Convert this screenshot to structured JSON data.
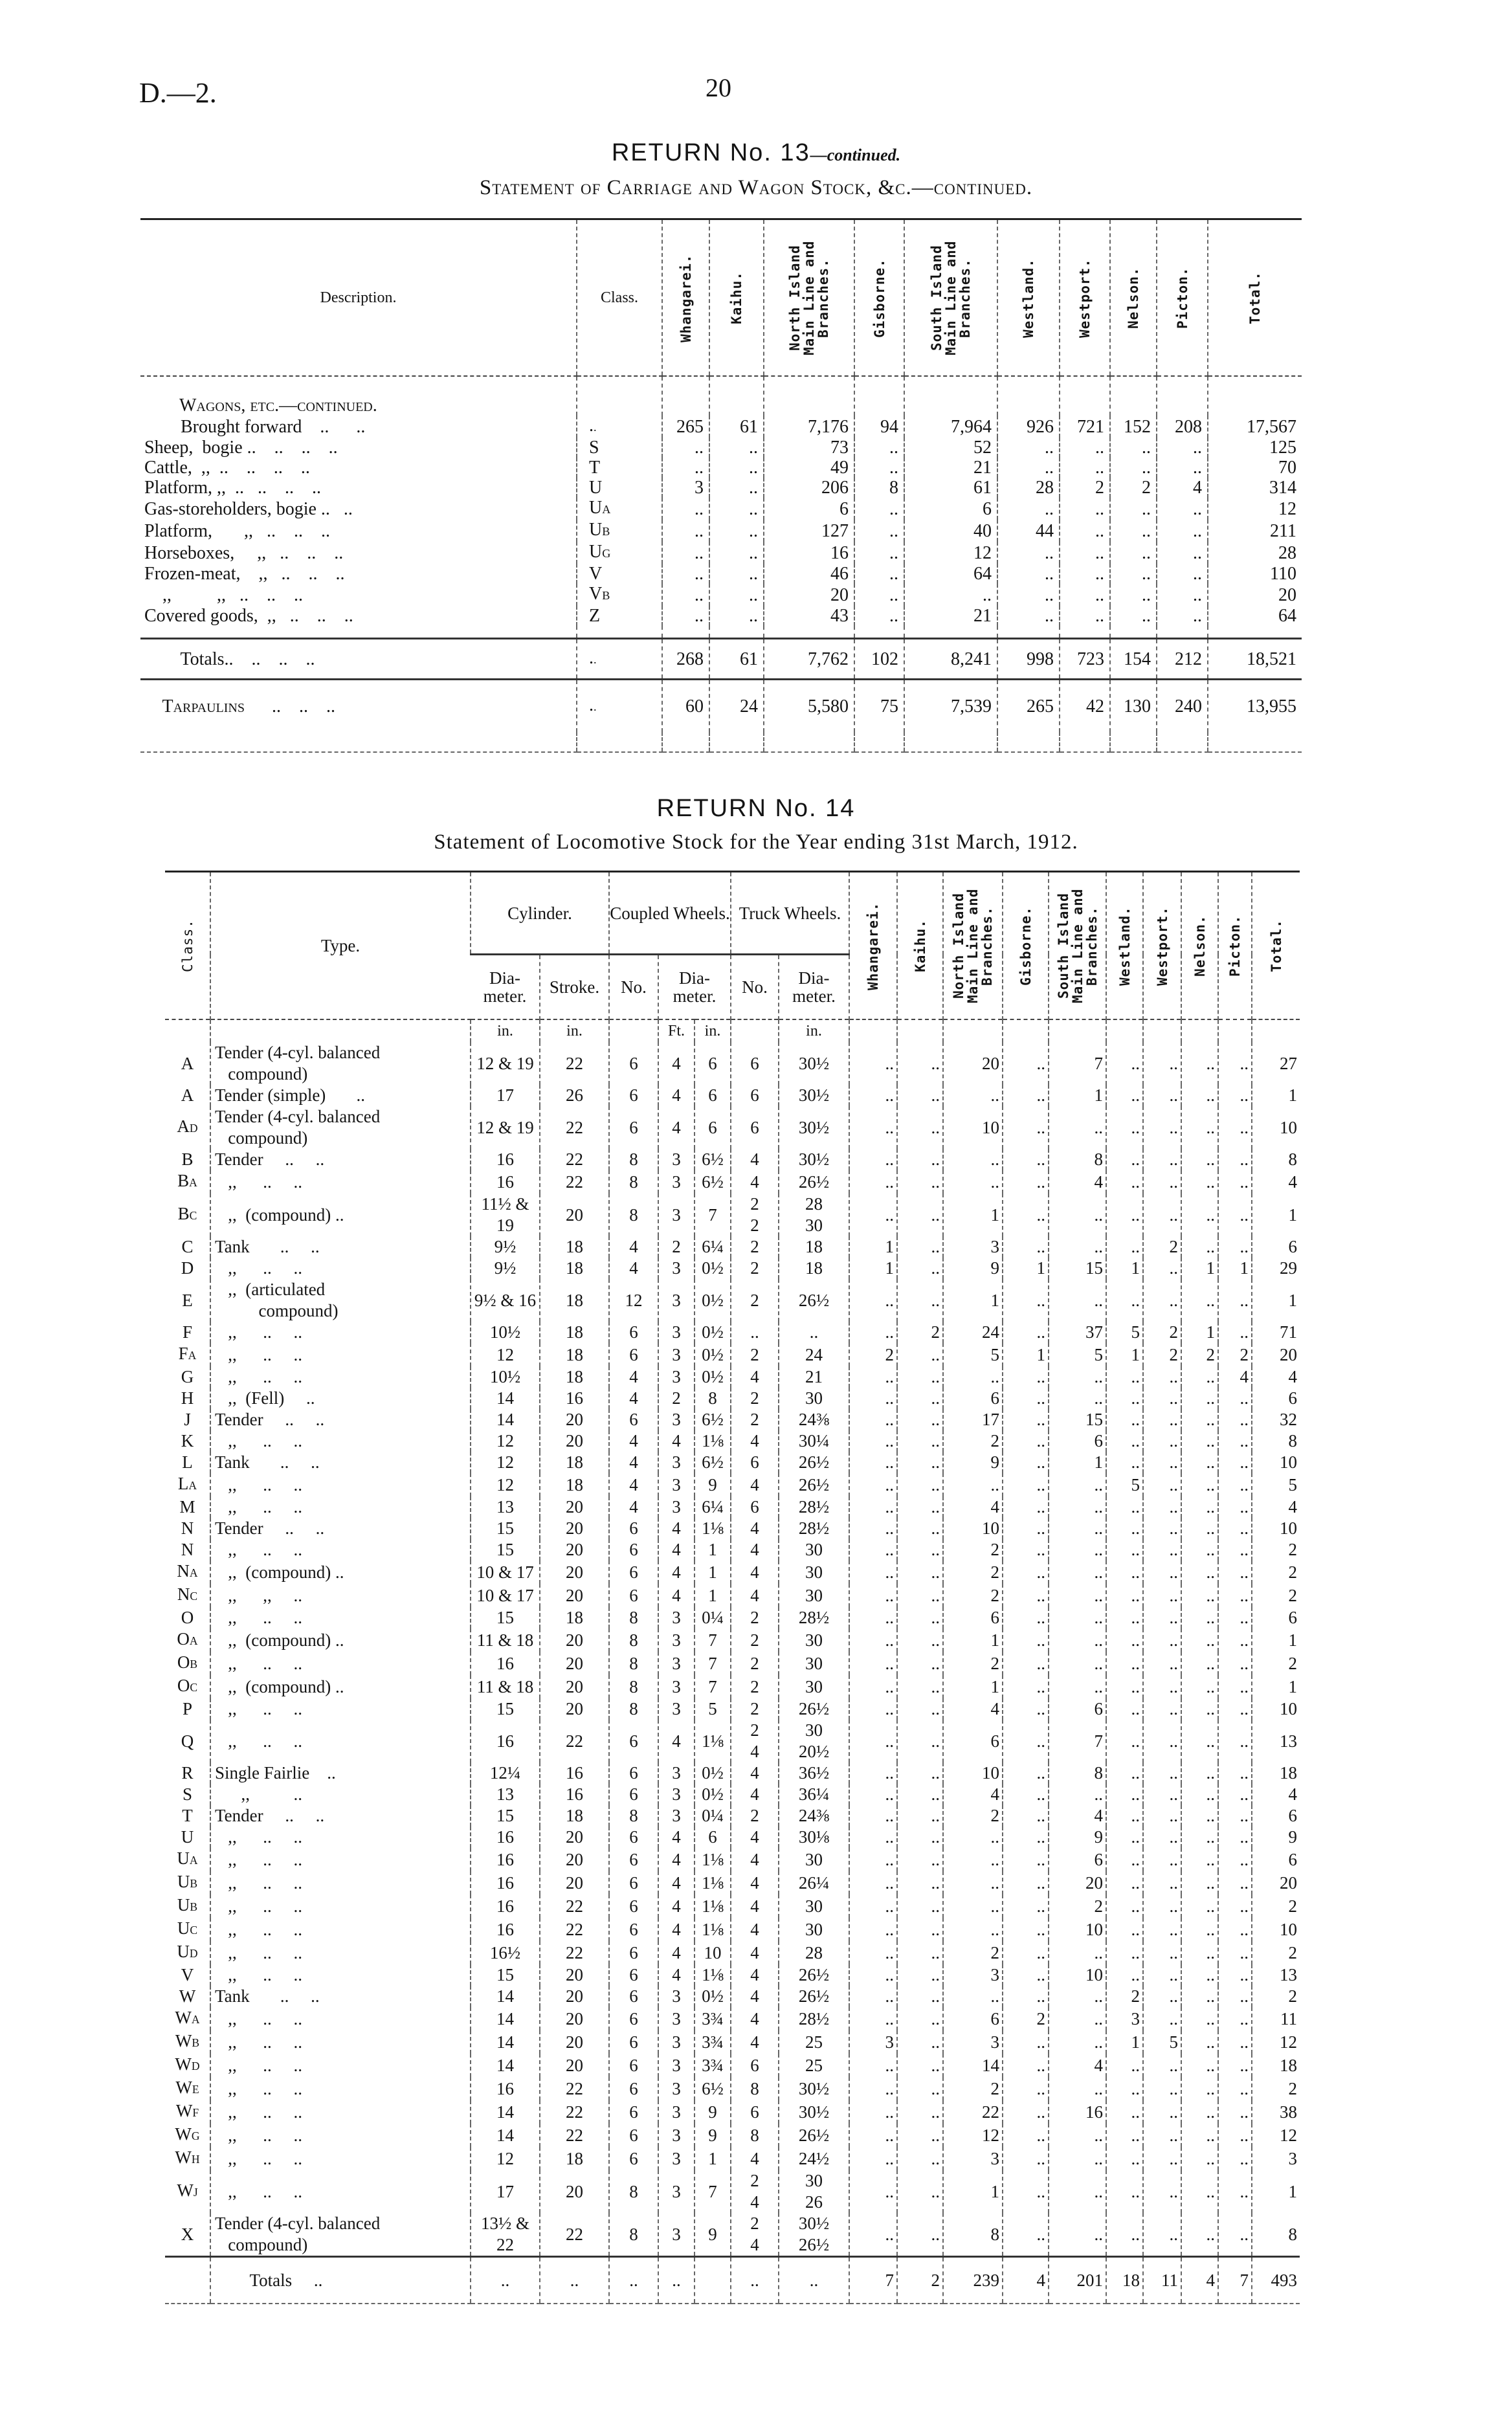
{
  "header": {
    "doc_code": "D.—2.",
    "page_number": "20"
  },
  "return13": {
    "title": "RETURN No. 13",
    "title_suffix": "—continued.",
    "subtitle": "Statement of Carriage and Wagon Stock, &c.—continued.",
    "columns": [
      "Description.",
      "Class.",
      "Whangarei.",
      "Kaihu.",
      "North Island Main Line and Branches.",
      "Gisborne.",
      "South Island Main Line and Branches.",
      "Westland.",
      "Westport.",
      "Nelson.",
      "Picton.",
      "Total."
    ],
    "section_label": "Wagons, etc.—continued.",
    "rows": [
      [
        "        Brought forward    ..      ..",
        "..",
        "265",
        "61",
        "7,176",
        "94",
        "7,964",
        "926",
        "721",
        "152",
        "208",
        "17,567"
      ],
      [
        "Sheep,  bogie ..    ..    ..    ..",
        "S",
        "..",
        "..",
        "73",
        "..",
        "52",
        "..",
        "..",
        "..",
        "..",
        "125"
      ],
      [
        "Cattle,  ,,  ..    ..    ..    ..",
        "T",
        "..",
        "..",
        "49",
        "..",
        "21",
        "..",
        "..",
        "..",
        "..",
        "70"
      ],
      [
        "Platform, ,,  ..   ..    ..    ..",
        "U",
        "3",
        "..",
        "206",
        "8",
        "61",
        "28",
        "2",
        "2",
        "4",
        "314"
      ],
      [
        "Gas-storeholders, bogie ..   ..",
        "UA",
        "..",
        "..",
        "6",
        "..",
        "6",
        "..",
        "..",
        "..",
        "..",
        "12"
      ],
      [
        "Platform,       ,,   ..    ..    ..",
        "UB",
        "..",
        "..",
        "127",
        "..",
        "40",
        "44",
        "..",
        "..",
        "..",
        "211"
      ],
      [
        "Horseboxes,     ,,   ..    ..    ..",
        "UG",
        "..",
        "..",
        "16",
        "..",
        "12",
        "..",
        "..",
        "..",
        "..",
        "28"
      ],
      [
        "Frozen-meat,    ,,   ..    ..    ..",
        "V",
        "..",
        "..",
        "46",
        "..",
        "64",
        "..",
        "..",
        "..",
        "..",
        "110"
      ],
      [
        "    ,,          ,,   ..    ..    ..",
        "VB",
        "..",
        "..",
        "20",
        "..",
        "..",
        "..",
        "..",
        "..",
        "..",
        "20"
      ],
      [
        "Covered goods,  ,,   ..    ..    ..",
        "Z",
        "..",
        "..",
        "43",
        "..",
        "21",
        "..",
        "..",
        "..",
        "..",
        "64"
      ]
    ],
    "totals": [
      "        Totals..    ..    ..    ..",
      "..",
      "268",
      "61",
      "7,762",
      "102",
      "8,241",
      "998",
      "723",
      "154",
      "212",
      "18,521"
    ],
    "tarpaulins": [
      "    Tarpaulins      ..    ..    ..",
      "..",
      "60",
      "24",
      "5,580",
      "75",
      "7,539",
      "265",
      "42",
      "130",
      "240",
      "13,955"
    ]
  },
  "return14": {
    "title": "RETURN No. 14",
    "subtitle": "Statement of Locomotive Stock for the Year ending 31st March, 1912.",
    "headers": {
      "class": "Class.",
      "type": "Type.",
      "cylinder": "Cylinder.",
      "coupled": "Coupled Wheels.",
      "truck": "Truck Wheels.",
      "diameter": "Dia-meter.",
      "stroke": "Stroke.",
      "no": "No.",
      "districts": [
        "Whangarei.",
        "Kaihu.",
        "North Island Main Line and Branches.",
        "Gisborne.",
        "South Island Main Line and Branches.",
        "Westland.",
        "Westport.",
        "Nelson.",
        "Picton.",
        "Total."
      ],
      "units": [
        "in.",
        "in.",
        "",
        "Ft.",
        "in.",
        "",
        "in."
      ]
    },
    "rows": [
      [
        "A",
        "Tender (4-cyl. balanced\n   compound)",
        "12 & 19",
        "22",
        "6",
        "4",
        "6",
        "6",
        "30½",
        "..",
        "..",
        "20",
        "..",
        "7",
        "..",
        "..",
        "..",
        "..",
        "27"
      ],
      [
        "A",
        "Tender (simple)       ..",
        "17",
        "26",
        "6",
        "4",
        "6",
        "6",
        "30½",
        "..",
        "..",
        "..",
        "..",
        "1",
        "..",
        "..",
        "..",
        "..",
        "1"
      ],
      [
        "AD",
        "Tender (4-cyl. balanced\n   compound)",
        "12 & 19",
        "22",
        "6",
        "4",
        "6",
        "6",
        "30½",
        "..",
        "..",
        "10",
        "..",
        "..",
        "..",
        "..",
        "..",
        "..",
        "10"
      ],
      [
        "B",
        "Tender     ..     ..",
        "16",
        "22",
        "8",
        "3",
        "6½",
        "4",
        "30½",
        "..",
        "..",
        "..",
        "..",
        "8",
        "..",
        "..",
        "..",
        "..",
        "8"
      ],
      [
        "BA",
        "   ,,      ..     ..",
        "16",
        "22",
        "8",
        "3",
        "6½",
        "4",
        "26½",
        "..",
        "..",
        "..",
        "..",
        "4",
        "..",
        "..",
        "..",
        "..",
        "4"
      ],
      [
        "BC",
        "   ,,  (compound) ..",
        "11½ &\n19",
        "20",
        "8",
        "3",
        "7",
        "2\n2",
        "28\n30",
        "..",
        "..",
        "1",
        "..",
        "..",
        "..",
        "..",
        "..",
        "..",
        "1"
      ],
      [
        "C",
        "Tank       ..     ..",
        "9½",
        "18",
        "4",
        "2",
        "6¼",
        "2",
        "18",
        "1",
        "..",
        "3",
        "..",
        "..",
        "..",
        "2",
        "..",
        "..",
        "6"
      ],
      [
        "D",
        "   ,,      ..     ..",
        "9½",
        "18",
        "4",
        "3",
        "0½",
        "2",
        "18",
        "1",
        "..",
        "9",
        "1",
        "15",
        "1",
        "..",
        "1",
        "1",
        "29"
      ],
      [
        "E",
        "   ,,  (articulated\n          compound)",
        "9½ & 16",
        "18",
        "12",
        "3",
        "0½",
        "2",
        "26½",
        "..",
        "..",
        "1",
        "..",
        "..",
        "..",
        "..",
        "..",
        "..",
        "1"
      ],
      [
        "F",
        "   ,,      ..     ..",
        "10½",
        "18",
        "6",
        "3",
        "0½",
        "..",
        "..",
        "..",
        "2",
        "24",
        "..",
        "37",
        "5",
        "2",
        "1",
        "..",
        "71"
      ],
      [
        "FA",
        "   ,,      ..     ..",
        "12",
        "18",
        "6",
        "3",
        "0½",
        "2",
        "24",
        "2",
        "..",
        "5",
        "1",
        "5",
        "1",
        "2",
        "2",
        "2",
        "20"
      ],
      [
        "G",
        "   ,,      ..     ..",
        "10½",
        "18",
        "4",
        "3",
        "0½",
        "4",
        "21",
        "..",
        "..",
        "..",
        "..",
        "..",
        "..",
        "..",
        "..",
        "4",
        "4"
      ],
      [
        "H",
        "   ,,  (Fell)     ..",
        "14",
        "16",
        "4",
        "2",
        "8",
        "2",
        "30",
        "..",
        "..",
        "6",
        "..",
        "..",
        "..",
        "..",
        "..",
        "..",
        "6"
      ],
      [
        "J",
        "Tender     ..     ..",
        "14",
        "20",
        "6",
        "3",
        "6½",
        "2",
        "24⅜",
        "..",
        "..",
        "17",
        "..",
        "15",
        "..",
        "..",
        "..",
        "..",
        "32"
      ],
      [
        "K",
        "   ,,      ..     ..",
        "12",
        "20",
        "4",
        "4",
        "1⅛",
        "4",
        "30¼",
        "..",
        "..",
        "2",
        "..",
        "6",
        "..",
        "..",
        "..",
        "..",
        "8"
      ],
      [
        "L",
        "Tank       ..     ..",
        "12",
        "18",
        "4",
        "3",
        "6½",
        "6",
        "26½",
        "..",
        "..",
        "9",
        "..",
        "1",
        "..",
        "..",
        "..",
        "..",
        "10"
      ],
      [
        "LA",
        "   ,,      ..     ..",
        "12",
        "18",
        "4",
        "3",
        "9",
        "4",
        "26½",
        "..",
        "..",
        "..",
        "..",
        "..",
        "5",
        "..",
        "..",
        "..",
        "5"
      ],
      [
        "M",
        "   ,,      ..     ..",
        "13",
        "20",
        "4",
        "3",
        "6¼",
        "6",
        "28½",
        "..",
        "..",
        "4",
        "..",
        "..",
        "..",
        "..",
        "..",
        "..",
        "4"
      ],
      [
        "N",
        "Tender     ..     ..",
        "15",
        "20",
        "6",
        "4",
        "1⅛",
        "4",
        "28½",
        "..",
        "..",
        "10",
        "..",
        "..",
        "..",
        "..",
        "..",
        "..",
        "10"
      ],
      [
        "N",
        "   ,,      ..     ..",
        "15",
        "20",
        "6",
        "4",
        "1",
        "4",
        "30",
        "..",
        "..",
        "2",
        "..",
        "..",
        "..",
        "..",
        "..",
        "..",
        "2"
      ],
      [
        "NA",
        "   ,,  (compound) ..",
        "10 & 17",
        "20",
        "6",
        "4",
        "1",
        "4",
        "30",
        "..",
        "..",
        "2",
        "..",
        "..",
        "..",
        "..",
        "..",
        "..",
        "2"
      ],
      [
        "NC",
        "   ,,      ,,     ..",
        "10 & 17",
        "20",
        "6",
        "4",
        "1",
        "4",
        "30",
        "..",
        "..",
        "2",
        "..",
        "..",
        "..",
        "..",
        "..",
        "..",
        "2"
      ],
      [
        "O",
        "   ,,      ..     ..",
        "15",
        "18",
        "8",
        "3",
        "0¼",
        "2",
        "28½",
        "..",
        "..",
        "6",
        "..",
        "..",
        "..",
        "..",
        "..",
        "..",
        "6"
      ],
      [
        "OA",
        "   ,,  (compound) ..",
        "11 & 18",
        "20",
        "8",
        "3",
        "7",
        "2",
        "30",
        "..",
        "..",
        "1",
        "..",
        "..",
        "..",
        "..",
        "..",
        "..",
        "1"
      ],
      [
        "OB",
        "   ,,      ..     ..",
        "16",
        "20",
        "8",
        "3",
        "7",
        "2",
        "30",
        "..",
        "..",
        "2",
        "..",
        "..",
        "..",
        "..",
        "..",
        "..",
        "2"
      ],
      [
        "OC",
        "   ,,  (compound) ..",
        "11 & 18",
        "20",
        "8",
        "3",
        "7",
        "2",
        "30",
        "..",
        "..",
        "1",
        "..",
        "..",
        "..",
        "..",
        "..",
        "..",
        "1"
      ],
      [
        "P",
        "   ,,      ..     ..",
        "15",
        "20",
        "8",
        "3",
        "5",
        "2",
        "26½",
        "..",
        "..",
        "4",
        "..",
        "6",
        "..",
        "..",
        "..",
        "..",
        "10"
      ],
      [
        "Q",
        "   ,,      ..     ..",
        "16",
        "22",
        "6",
        "4",
        "1⅛",
        "2\n4",
        "30\n20½",
        "..",
        "..",
        "6",
        "..",
        "7",
        "..",
        "..",
        "..",
        "..",
        "13"
      ],
      [
        "R",
        "Single Fairlie    ..",
        "12¼",
        "16",
        "6",
        "3",
        "0½",
        "4",
        "36½",
        "..",
        "..",
        "10",
        "..",
        "8",
        "..",
        "..",
        "..",
        "..",
        "18"
      ],
      [
        "S",
        "      ,,          ..",
        "13",
        "16",
        "6",
        "3",
        "0½",
        "4",
        "36¼",
        "..",
        "..",
        "4",
        "..",
        "..",
        "..",
        "..",
        "..",
        "..",
        "4"
      ],
      [
        "T",
        "Tender     ..     ..",
        "15",
        "18",
        "8",
        "3",
        "0¼",
        "2",
        "24⅜",
        "..",
        "..",
        "2",
        "..",
        "4",
        "..",
        "..",
        "..",
        "..",
        "6"
      ],
      [
        "U",
        "   ,,      ..     ..",
        "16",
        "20",
        "6",
        "4",
        "6",
        "4",
        "30⅛",
        "..",
        "..",
        "..",
        "..",
        "9",
        "..",
        "..",
        "..",
        "..",
        "9"
      ],
      [
        "UA",
        "   ,,      ..     ..",
        "16",
        "20",
        "6",
        "4",
        "1⅛",
        "4",
        "30",
        "..",
        "..",
        "..",
        "..",
        "6",
        "..",
        "..",
        "..",
        "..",
        "6"
      ],
      [
        "UB",
        "   ,,      ..     ..",
        "16",
        "20",
        "6",
        "4",
        "1⅛",
        "4",
        "26¼",
        "..",
        "..",
        "..",
        "..",
        "20",
        "..",
        "..",
        "..",
        "..",
        "20"
      ],
      [
        "UB",
        "   ,,      ..     ..",
        "16",
        "22",
        "6",
        "4",
        "1⅛",
        "4",
        "30",
        "..",
        "..",
        "..",
        "..",
        "2",
        "..",
        "..",
        "..",
        "..",
        "2"
      ],
      [
        "UC",
        "   ,,      ..     ..",
        "16",
        "22",
        "6",
        "4",
        "1⅛",
        "4",
        "30",
        "..",
        "..",
        "..",
        "..",
        "10",
        "..",
        "..",
        "..",
        "..",
        "10"
      ],
      [
        "UD",
        "   ,,      ..     ..",
        "16½",
        "22",
        "6",
        "4",
        "10",
        "4",
        "28",
        "..",
        "..",
        "2",
        "..",
        "..",
        "..",
        "..",
        "..",
        "..",
        "2"
      ],
      [
        "V",
        "   ,,      ..     ..",
        "15",
        "20",
        "6",
        "4",
        "1⅛",
        "4",
        "26½",
        "..",
        "..",
        "3",
        "..",
        "10",
        "..",
        "..",
        "..",
        "..",
        "13"
      ],
      [
        "W",
        "Tank       ..     ..",
        "14",
        "20",
        "6",
        "3",
        "0½",
        "4",
        "26½",
        "..",
        "..",
        "..",
        "..",
        "..",
        "2",
        "..",
        "..",
        "..",
        "2"
      ],
      [
        "WA",
        "   ,,      ..     ..",
        "14",
        "20",
        "6",
        "3",
        "3¾",
        "4",
        "28½",
        "..",
        "..",
        "6",
        "2",
        "..",
        "3",
        "..",
        "..",
        "..",
        "11"
      ],
      [
        "WB",
        "   ,,      ..     ..",
        "14",
        "20",
        "6",
        "3",
        "3¾",
        "4",
        "25",
        "3",
        "..",
        "3",
        "..",
        "..",
        "1",
        "5",
        "..",
        "..",
        "12"
      ],
      [
        "WD",
        "   ,,      ..     ..",
        "14",
        "20",
        "6",
        "3",
        "3¾",
        "6",
        "25",
        "..",
        "..",
        "14",
        "..",
        "4",
        "..",
        "..",
        "..",
        "..",
        "18"
      ],
      [
        "WE",
        "   ,,      ..     ..",
        "16",
        "22",
        "6",
        "3",
        "6½",
        "8",
        "30½",
        "..",
        "..",
        "2",
        "..",
        "..",
        "..",
        "..",
        "..",
        "..",
        "2"
      ],
      [
        "WF",
        "   ,,      ..     ..",
        "14",
        "22",
        "6",
        "3",
        "9",
        "6",
        "30½",
        "..",
        "..",
        "22",
        "..",
        "16",
        "..",
        "..",
        "..",
        "..",
        "38"
      ],
      [
        "WG",
        "   ,,      ..     ..",
        "14",
        "22",
        "6",
        "3",
        "9",
        "8",
        "26½",
        "..",
        "..",
        "12",
        "..",
        "..",
        "..",
        "..",
        "..",
        "..",
        "12"
      ],
      [
        "WH",
        "   ,,      ..     ..",
        "12",
        "18",
        "6",
        "3",
        "1",
        "4",
        "24½",
        "..",
        "..",
        "3",
        "..",
        "..",
        "..",
        "..",
        "..",
        "..",
        "3"
      ],
      [
        "WJ",
        "   ,,      ..     ..",
        "17",
        "20",
        "8",
        "3",
        "7",
        "2\n4",
        "30\n26",
        "..",
        "..",
        "1",
        "..",
        "..",
        "..",
        "..",
        "..",
        "..",
        "1"
      ],
      [
        "X",
        "Tender (4-cyl. balanced\n   compound)",
        "13½ &\n22",
        "22",
        "8",
        "3",
        "9",
        "2\n4",
        "30½\n26½",
        "..",
        "..",
        "8",
        "..",
        "..",
        "..",
        "..",
        "..",
        "..",
        "8"
      ]
    ],
    "totals": [
      "",
      "        Totals     ..",
      "..",
      "..",
      "..",
      "..",
      "",
      "..",
      "..",
      "7",
      "2",
      "239",
      "4",
      "201",
      "18",
      "11",
      "4",
      "7",
      "493"
    ]
  }
}
